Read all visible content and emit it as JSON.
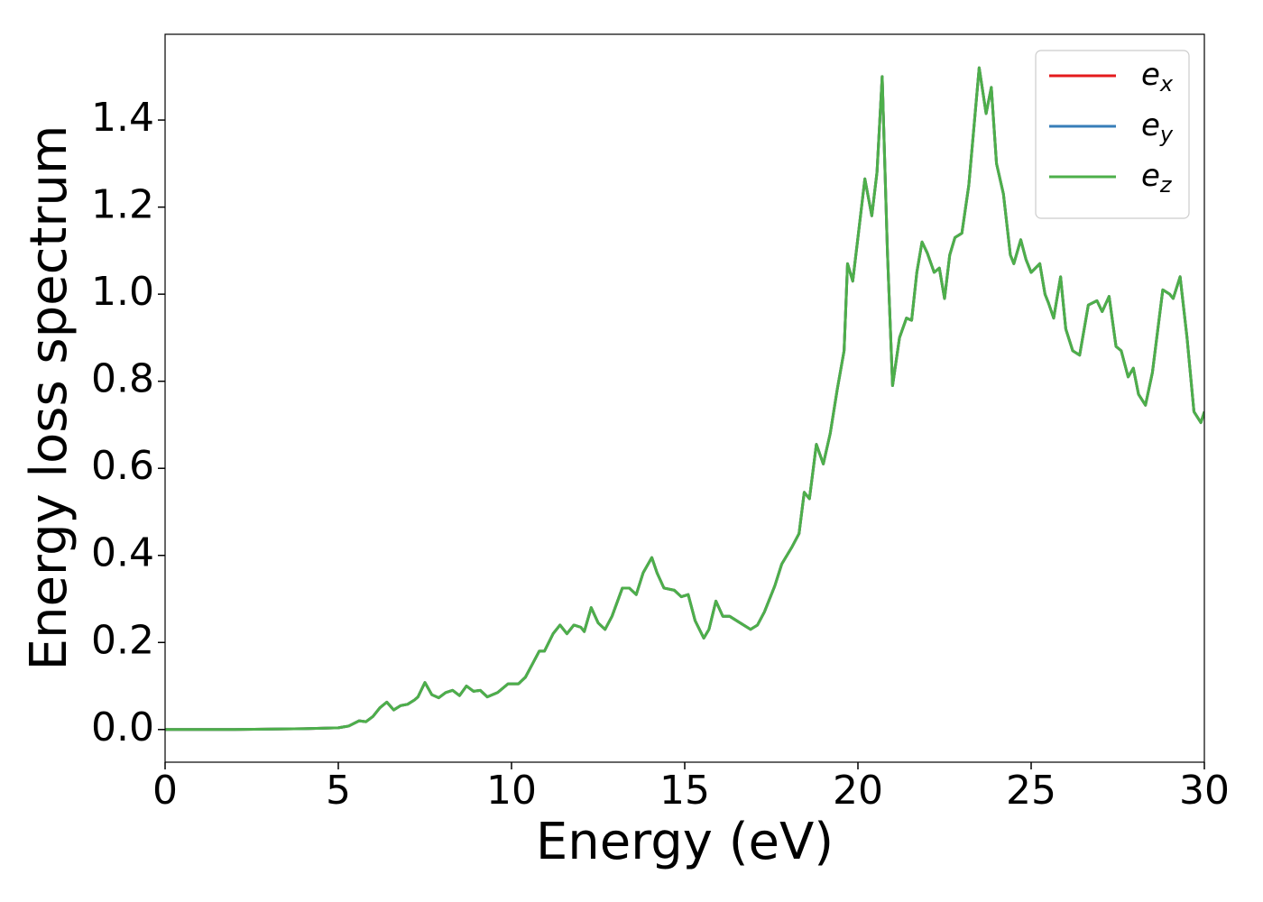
{
  "chart_data": {
    "type": "line",
    "x_label": "Energy (eV)",
    "y_label": "Energy loss spectrum",
    "x": [
      0,
      2,
      4,
      5,
      5.3,
      5.6,
      5.8,
      6.0,
      6.2,
      6.4,
      6.6,
      6.8,
      7.0,
      7.2,
      7.3,
      7.5,
      7.7,
      7.9,
      8.1,
      8.3,
      8.5,
      8.7,
      8.9,
      9.1,
      9.3,
      9.6,
      9.9,
      10.2,
      10.4,
      10.6,
      10.8,
      10.95,
      11.2,
      11.4,
      11.6,
      11.8,
      12.0,
      12.1,
      12.3,
      12.5,
      12.7,
      12.9,
      13.2,
      13.4,
      13.6,
      13.8,
      14.05,
      14.2,
      14.4,
      14.7,
      14.9,
      15.1,
      15.3,
      15.55,
      15.7,
      15.9,
      16.1,
      16.3,
      16.6,
      16.9,
      17.1,
      17.3,
      17.6,
      17.8,
      18.1,
      18.3,
      18.45,
      18.6,
      18.8,
      19.0,
      19.2,
      19.4,
      19.6,
      19.7,
      19.85,
      20.0,
      20.2,
      20.4,
      20.55,
      20.7,
      20.85,
      21.0,
      21.2,
      21.4,
      21.55,
      21.7,
      21.85,
      22.0,
      22.2,
      22.35,
      22.5,
      22.65,
      22.8,
      23.0,
      23.2,
      23.5,
      23.7,
      23.85,
      24.0,
      24.2,
      24.4,
      24.5,
      24.7,
      24.85,
      25.0,
      25.25,
      25.4,
      25.5,
      25.65,
      25.85,
      26.0,
      26.2,
      26.4,
      26.65,
      26.9,
      27.05,
      27.25,
      27.45,
      27.6,
      27.8,
      27.95,
      28.1,
      28.3,
      28.5,
      28.8,
      29.0,
      29.1,
      29.3,
      29.5,
      29.7,
      29.9,
      30.0
    ],
    "series": [
      {
        "name": "ex",
        "color": "#e41a1c",
        "values": [
          0,
          0,
          0.002,
          0.004,
          0.008,
          0.02,
          0.018,
          0.03,
          0.05,
          0.063,
          0.045,
          0.055,
          0.058,
          0.068,
          0.075,
          0.108,
          0.08,
          0.073,
          0.085,
          0.09,
          0.078,
          0.1,
          0.088,
          0.09,
          0.075,
          0.085,
          0.105,
          0.105,
          0.12,
          0.15,
          0.18,
          0.18,
          0.22,
          0.24,
          0.22,
          0.24,
          0.235,
          0.225,
          0.28,
          0.245,
          0.23,
          0.26,
          0.325,
          0.325,
          0.31,
          0.36,
          0.395,
          0.36,
          0.325,
          0.32,
          0.305,
          0.31,
          0.25,
          0.21,
          0.23,
          0.295,
          0.26,
          0.26,
          0.245,
          0.23,
          0.24,
          0.27,
          0.33,
          0.38,
          0.42,
          0.45,
          0.545,
          0.53,
          0.655,
          0.61,
          0.68,
          0.78,
          0.87,
          1.07,
          1.03,
          1.13,
          1.265,
          1.18,
          1.28,
          1.5,
          1.1,
          0.79,
          0.9,
          0.945,
          0.94,
          1.05,
          1.12,
          1.095,
          1.05,
          1.06,
          0.99,
          1.09,
          1.13,
          1.14,
          1.25,
          1.52,
          1.415,
          1.475,
          1.3,
          1.23,
          1.09,
          1.07,
          1.125,
          1.08,
          1.05,
          1.07,
          1.0,
          0.98,
          0.945,
          1.04,
          0.92,
          0.87,
          0.86,
          0.975,
          0.985,
          0.96,
          0.995,
          0.88,
          0.87,
          0.81,
          0.83,
          0.77,
          0.745,
          0.82,
          1.01,
          1.0,
          0.99,
          1.04,
          0.9,
          0.73,
          0.705,
          0.73
        ]
      },
      {
        "name": "ey",
        "color": "#377eb8",
        "values": [
          0,
          0,
          0.002,
          0.004,
          0.008,
          0.02,
          0.018,
          0.03,
          0.05,
          0.063,
          0.045,
          0.055,
          0.058,
          0.068,
          0.075,
          0.108,
          0.08,
          0.073,
          0.085,
          0.09,
          0.078,
          0.1,
          0.088,
          0.09,
          0.075,
          0.085,
          0.105,
          0.105,
          0.12,
          0.15,
          0.18,
          0.18,
          0.22,
          0.24,
          0.22,
          0.24,
          0.235,
          0.225,
          0.28,
          0.245,
          0.23,
          0.26,
          0.325,
          0.325,
          0.31,
          0.36,
          0.395,
          0.36,
          0.325,
          0.32,
          0.305,
          0.31,
          0.25,
          0.21,
          0.23,
          0.295,
          0.26,
          0.26,
          0.245,
          0.23,
          0.24,
          0.27,
          0.33,
          0.38,
          0.42,
          0.45,
          0.545,
          0.53,
          0.655,
          0.61,
          0.68,
          0.78,
          0.87,
          1.07,
          1.03,
          1.13,
          1.265,
          1.18,
          1.28,
          1.5,
          1.1,
          0.79,
          0.9,
          0.945,
          0.94,
          1.05,
          1.12,
          1.095,
          1.05,
          1.06,
          0.99,
          1.09,
          1.13,
          1.14,
          1.25,
          1.52,
          1.415,
          1.475,
          1.3,
          1.23,
          1.09,
          1.07,
          1.125,
          1.08,
          1.05,
          1.07,
          1.0,
          0.98,
          0.945,
          1.04,
          0.92,
          0.87,
          0.86,
          0.975,
          0.985,
          0.96,
          0.995,
          0.88,
          0.87,
          0.81,
          0.83,
          0.77,
          0.745,
          0.82,
          1.01,
          1.0,
          0.99,
          1.04,
          0.9,
          0.73,
          0.705,
          0.73
        ]
      },
      {
        "name": "ez",
        "color": "#4daf4a",
        "values": [
          0,
          0,
          0.002,
          0.004,
          0.008,
          0.02,
          0.018,
          0.03,
          0.05,
          0.063,
          0.045,
          0.055,
          0.058,
          0.068,
          0.075,
          0.108,
          0.08,
          0.073,
          0.085,
          0.09,
          0.078,
          0.1,
          0.088,
          0.09,
          0.075,
          0.085,
          0.105,
          0.105,
          0.12,
          0.15,
          0.18,
          0.18,
          0.22,
          0.24,
          0.22,
          0.24,
          0.235,
          0.225,
          0.28,
          0.245,
          0.23,
          0.26,
          0.325,
          0.325,
          0.31,
          0.36,
          0.395,
          0.36,
          0.325,
          0.32,
          0.305,
          0.31,
          0.25,
          0.21,
          0.23,
          0.295,
          0.26,
          0.26,
          0.245,
          0.23,
          0.24,
          0.27,
          0.33,
          0.38,
          0.42,
          0.45,
          0.545,
          0.53,
          0.655,
          0.61,
          0.68,
          0.78,
          0.87,
          1.07,
          1.03,
          1.13,
          1.265,
          1.18,
          1.28,
          1.5,
          1.1,
          0.79,
          0.9,
          0.945,
          0.94,
          1.05,
          1.12,
          1.095,
          1.05,
          1.06,
          0.99,
          1.09,
          1.13,
          1.14,
          1.25,
          1.52,
          1.415,
          1.475,
          1.3,
          1.23,
          1.09,
          1.07,
          1.125,
          1.08,
          1.05,
          1.07,
          1.0,
          0.98,
          0.945,
          1.04,
          0.92,
          0.87,
          0.86,
          0.975,
          0.985,
          0.96,
          0.995,
          0.88,
          0.87,
          0.81,
          0.83,
          0.77,
          0.745,
          0.82,
          1.01,
          1.0,
          0.99,
          1.04,
          0.9,
          0.73,
          0.705,
          0.73
        ]
      }
    ],
    "xlim": [
      0,
      30
    ],
    "xticks": [
      0,
      5,
      10,
      15,
      20,
      25,
      30
    ],
    "ylim": [
      -0.075,
      1.597
    ],
    "yticks": [
      {
        "value": 0,
        "label": "0.0"
      },
      0.2,
      0.4,
      0.6,
      0.8,
      {
        "value": 1,
        "label": "1.0"
      },
      1.2,
      1.4
    ],
    "legend": "upper right",
    "grid": false
  }
}
